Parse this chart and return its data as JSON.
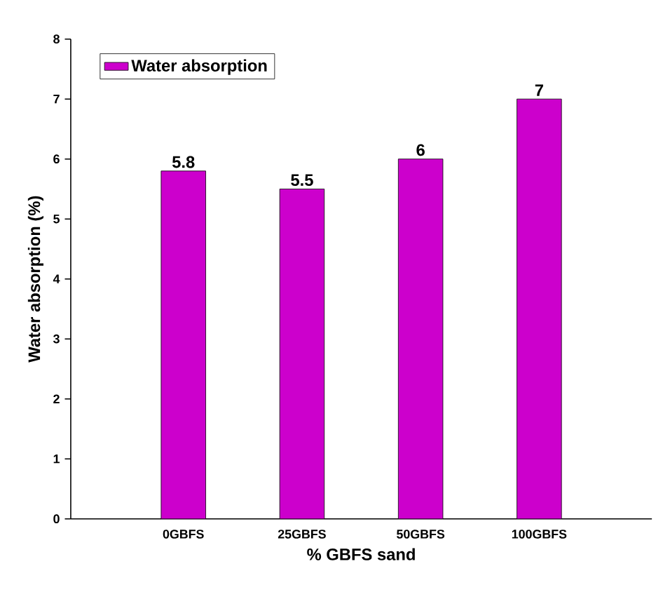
{
  "chart_data": {
    "type": "bar",
    "xlabel": "% GBFS sand",
    "ylabel": "Water absorption (%)",
    "categories": [
      "0GBFS",
      "25GBFS",
      "50GBFS",
      "100GBFS"
    ],
    "series": [
      {
        "name": "Water absorption",
        "color": "#cc00cc",
        "values": [
          5.8,
          5.5,
          6,
          7
        ]
      }
    ],
    "ylim": [
      0,
      8
    ],
    "yticks": [
      0,
      1,
      2,
      3,
      4,
      5,
      6,
      7,
      8
    ],
    "data_labels": true,
    "legend": "top left",
    "grid": false
  }
}
